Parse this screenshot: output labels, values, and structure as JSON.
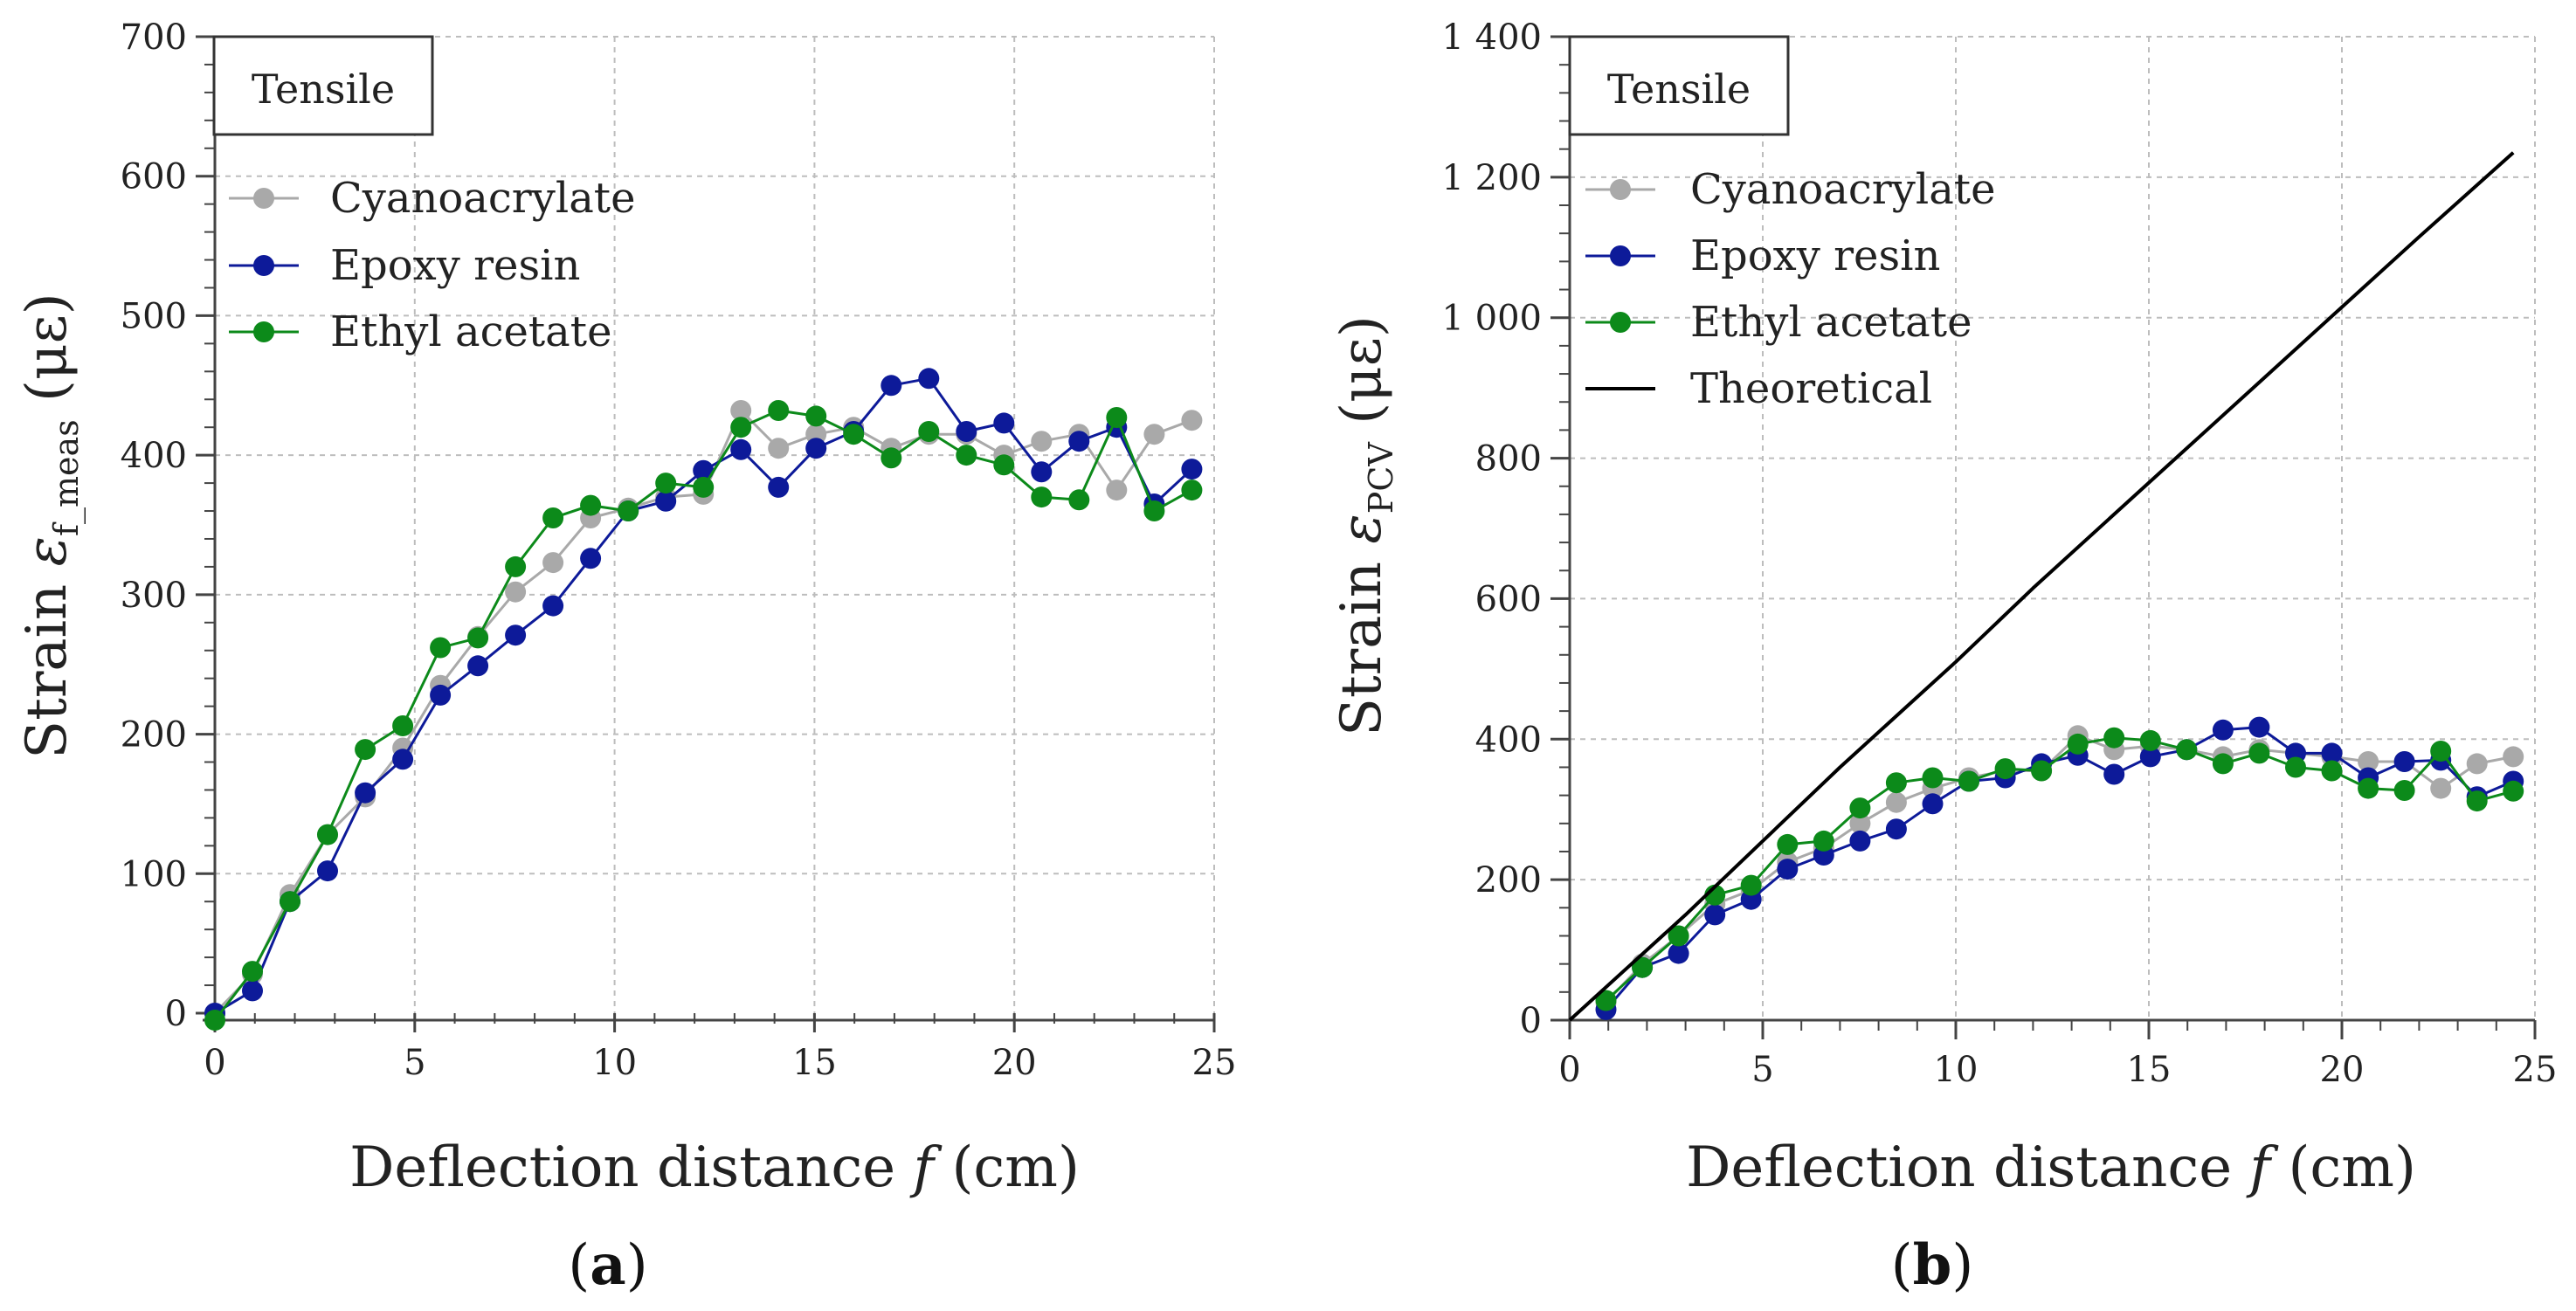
{
  "chart_data": [
    {
      "type": "line",
      "caption_letter": "a",
      "box_label": "Tensile",
      "xlabel_prefix": "Deflection distance",
      "xlabel_var": "f",
      "xlabel_unit": "(cm)",
      "ylabel_prefix": "Strain",
      "ylabel_symbol": "ε",
      "ylabel_sub": "f_meas",
      "ylabel_unit": "(με)",
      "xlim": [
        0,
        25
      ],
      "ylim": [
        0,
        700
      ],
      "xticks": [
        0,
        5,
        10,
        15,
        20,
        25
      ],
      "xtick_labels": [
        "0",
        "5",
        "10",
        "15",
        "20",
        "25"
      ],
      "yticks": [
        0,
        100,
        200,
        300,
        400,
        500,
        600,
        700
      ],
      "ytick_labels": [
        "0",
        "100",
        "200",
        "300",
        "400",
        "500",
        "600",
        "700"
      ],
      "grid": true,
      "legend_position": "top-left",
      "series": [
        {
          "name": "Cyanoacrylate",
          "color": "#a9a9a9",
          "x": [
            0,
            0.94,
            1.88,
            2.82,
            3.76,
            4.7,
            5.64,
            6.58,
            7.52,
            8.46,
            9.4,
            10.34,
            11.28,
            12.22,
            13.16,
            14.1,
            15.04,
            15.98,
            16.92,
            17.86,
            18.8,
            19.74,
            20.68,
            21.62,
            22.56,
            23.5,
            24.44
          ],
          "values": [
            0,
            28,
            85,
            128,
            155,
            190,
            235,
            270,
            302,
            323,
            355,
            362,
            370,
            372,
            432,
            405,
            415,
            420,
            405,
            415,
            415,
            400,
            410,
            415,
            375,
            415,
            425
          ]
        },
        {
          "name": "Epoxy resin",
          "color": "#0d1a99",
          "x": [
            0,
            0.94,
            1.88,
            2.82,
            3.76,
            4.7,
            5.64,
            6.58,
            7.52,
            8.46,
            9.4,
            10.34,
            11.28,
            12.22,
            13.16,
            14.1,
            15.04,
            15.98,
            16.92,
            17.86,
            18.8,
            19.74,
            20.68,
            21.62,
            22.56,
            23.5,
            24.44
          ],
          "values": [
            0,
            16,
            80,
            102,
            158,
            182,
            228,
            249,
            271,
            292,
            326,
            360,
            367,
            389,
            404,
            377,
            405,
            417,
            450,
            455,
            417,
            423,
            388,
            410,
            420,
            365,
            390
          ]
        },
        {
          "name": "Ethyl acetate",
          "color": "#0c8a1a",
          "x": [
            0,
            0.94,
            1.88,
            2.82,
            3.76,
            4.7,
            5.64,
            6.58,
            7.52,
            8.46,
            9.4,
            10.34,
            11.28,
            12.22,
            13.16,
            14.1,
            15.04,
            15.98,
            16.92,
            17.86,
            18.8,
            19.74,
            20.68,
            21.62,
            22.56,
            23.5,
            24.44
          ],
          "values": [
            -5,
            30,
            80,
            128,
            189,
            206,
            262,
            269,
            320,
            355,
            364,
            360,
            380,
            377,
            420,
            432,
            428,
            415,
            398,
            417,
            400,
            393,
            370,
            368,
            427,
            360,
            375
          ]
        }
      ]
    },
    {
      "type": "line",
      "caption_letter": "b",
      "box_label": "Tensile",
      "xlabel_prefix": "Deflection distance",
      "xlabel_var": "f",
      "xlabel_unit": "(cm)",
      "ylabel_prefix": "Strain",
      "ylabel_symbol": "ε",
      "ylabel_sub": "PCV",
      "ylabel_unit": "(με)",
      "xlim": [
        0,
        25
      ],
      "ylim": [
        0,
        1400
      ],
      "xticks": [
        0,
        5,
        10,
        15,
        20,
        25
      ],
      "xtick_labels": [
        "0",
        "5",
        "10",
        "15",
        "20",
        "25"
      ],
      "yticks": [
        0,
        200,
        400,
        600,
        800,
        1000,
        1200,
        1400
      ],
      "ytick_labels": [
        "0",
        "200",
        "400",
        "600",
        "800",
        "1 000",
        "1 200",
        "1 400"
      ],
      "grid": true,
      "legend_position": "top-left",
      "series": [
        {
          "name": "Cyanoacrylate",
          "color": "#a9a9a9",
          "x": [
            0.94,
            1.88,
            2.82,
            3.76,
            4.7,
            5.64,
            6.58,
            7.52,
            8.46,
            9.4,
            10.34,
            11.28,
            12.22,
            13.16,
            14.1,
            15.04,
            15.98,
            16.92,
            17.86,
            18.8,
            19.74,
            20.68,
            21.62,
            22.56,
            23.5,
            24.44
          ],
          "values": [
            25,
            80,
            120,
            165,
            185,
            225,
            245,
            280,
            310,
            330,
            345,
            355,
            355,
            405,
            385,
            390,
            385,
            375,
            385,
            380,
            375,
            368,
            368,
            330,
            365,
            375
          ]
        },
        {
          "name": "Epoxy resin",
          "color": "#0d1a99",
          "x": [
            0.94,
            1.88,
            2.82,
            3.76,
            4.7,
            5.64,
            6.58,
            7.52,
            8.46,
            9.4,
            10.34,
            11.28,
            12.22,
            13.16,
            14.1,
            15.04,
            15.98,
            16.92,
            17.86,
            18.8,
            19.74,
            20.68,
            21.62,
            22.56,
            23.5,
            24.44
          ],
          "values": [
            15,
            75,
            95,
            150,
            172,
            215,
            235,
            255,
            272,
            308,
            340,
            345,
            365,
            377,
            350,
            375,
            385,
            413,
            417,
            380,
            380,
            345,
            368,
            370,
            318,
            340
          ]
        },
        {
          "name": "Ethyl acetate",
          "color": "#0c8a1a",
          "x": [
            0.94,
            1.88,
            2.82,
            3.76,
            4.7,
            5.64,
            6.58,
            7.52,
            8.46,
            9.4,
            10.34,
            11.28,
            12.22,
            13.16,
            14.1,
            15.04,
            15.98,
            16.92,
            17.86,
            18.8,
            19.74,
            20.68,
            21.62,
            22.56,
            23.5,
            24.44
          ],
          "values": [
            28,
            75,
            120,
            178,
            192,
            250,
            255,
            302,
            338,
            345,
            340,
            358,
            355,
            393,
            402,
            398,
            385,
            365,
            380,
            360,
            355,
            330,
            327,
            383,
            312,
            326
          ]
        },
        {
          "name": "Theoretical",
          "color": "#000000",
          "x": [
            0,
            1.5,
            3,
            5,
            7,
            10,
            12,
            14,
            16,
            18,
            20,
            22,
            24.44
          ],
          "values": [
            0,
            75,
            150,
            255,
            360,
            510,
            615,
            715,
            815,
            915,
            1015,
            1115,
            1235
          ]
        }
      ]
    }
  ]
}
